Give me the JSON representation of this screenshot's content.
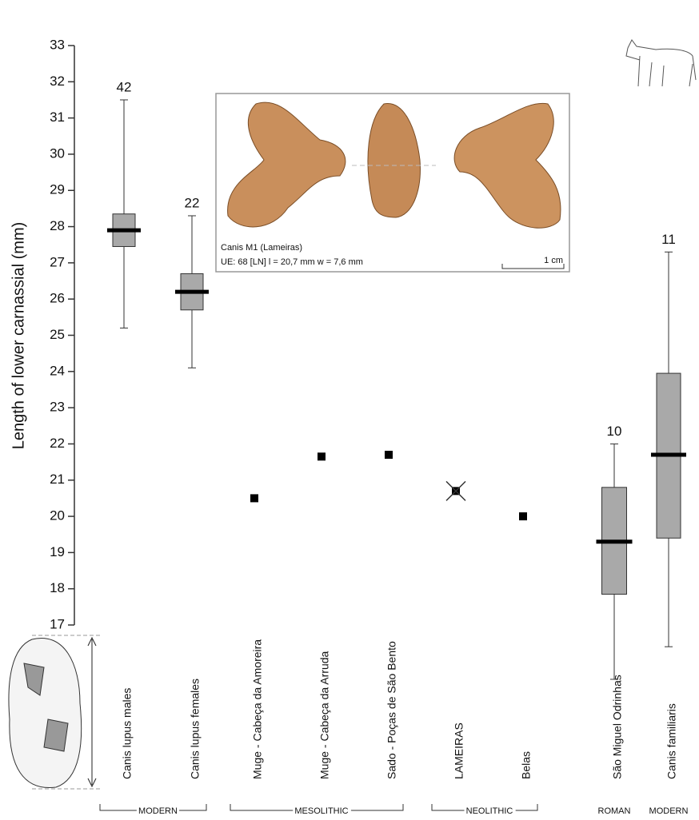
{
  "chart_data": {
    "type": "box",
    "y_label": "Length of lower carnassial (mm)",
    "categories": [
      "Canis lupus males",
      "Canis lupus females",
      "Muge - Cabeça da Amoreira",
      "Muge - Cabeça da Arruda",
      "Sado - Poças de São Bento",
      "LAMEIRAS",
      "Belas",
      "São Miguel Odrinhas",
      "Canis familiaris"
    ],
    "whisker_low": [
      25.2,
      24.1,
      null,
      null,
      null,
      null,
      null,
      15.5,
      16.4
    ],
    "q1": [
      27.45,
      25.7,
      null,
      null,
      null,
      null,
      null,
      17.85,
      19.4
    ],
    "median": [
      27.9,
      26.2,
      null,
      null,
      null,
      null,
      null,
      19.3,
      21.7
    ],
    "q3": [
      28.35,
      26.7,
      null,
      null,
      null,
      null,
      null,
      20.8,
      23.95
    ],
    "whisker_high": [
      31.5,
      28.3,
      null,
      null,
      null,
      null,
      null,
      22.0,
      27.3
    ],
    "n": [
      42,
      22,
      null,
      null,
      null,
      null,
      null,
      10,
      11
    ],
    "points": [
      null,
      null,
      20.5,
      21.65,
      21.7,
      20.7,
      20.0,
      null,
      null
    ],
    "periods": [
      "MODERN",
      "MESOLITHIC",
      "NEOLITHIC",
      "ROMAN",
      "MODERN"
    ],
    "box_color": "#a9a9a9",
    "ylim": [
      17,
      33
    ],
    "yticks": [
      17,
      18,
      19,
      20,
      21,
      22,
      23,
      24,
      25,
      26,
      27,
      28,
      29,
      30,
      31,
      32,
      33
    ],
    "inset": {
      "caption": "Canis M1 (Lameiras)",
      "detail": "UE: 68 [LN] l = 20,7 mm w = 7,6 mm",
      "scale": "1 cm"
    }
  }
}
